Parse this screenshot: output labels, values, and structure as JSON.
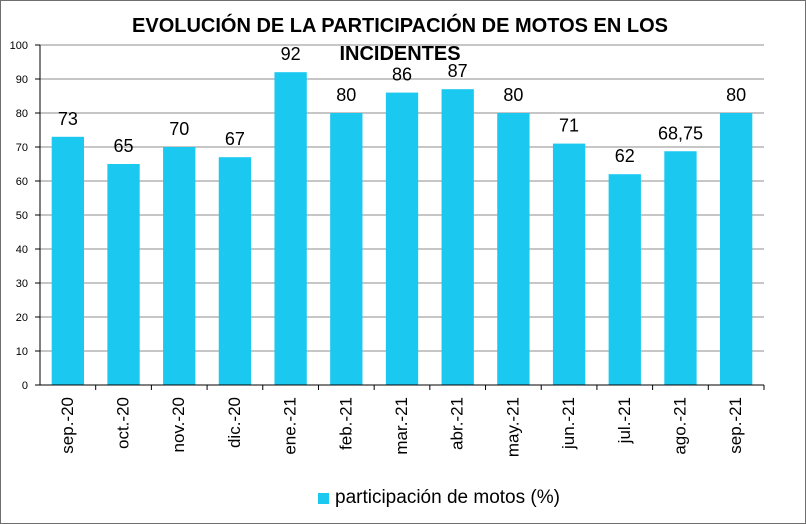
{
  "colors": {
    "bar": "#1ac8f0",
    "grid": "#8c8c8c",
    "axis": "#000000",
    "background": "#ffffff"
  },
  "chart_data": {
    "type": "bar",
    "title": "EVOLUCIÓN DE LA PARTICIPACIÓN DE MOTOS EN LOS INCIDENTES",
    "xlabel": "",
    "ylabel": "",
    "ylim": [
      0,
      100
    ],
    "yticks": [
      "0",
      "10",
      "20",
      "30",
      "40",
      "50",
      "60",
      "70",
      "80",
      "90",
      "100"
    ],
    "grid": true,
    "legend_position": "bottom",
    "categories": [
      "sep.-20",
      "oct.-20",
      "nov.-20",
      "dic.-20",
      "ene.-21",
      "feb.-21",
      "mar.-21",
      "abr.-21",
      "may.-21",
      "jun.-21",
      "jul.-21",
      "ago.-21",
      "sep.-21"
    ],
    "series": [
      {
        "name": "participación de motos (%)",
        "values": [
          73,
          65,
          70,
          67,
          92,
          80,
          86,
          87,
          80,
          71,
          62,
          68.75,
          80
        ],
        "labels": [
          "73",
          "65",
          "70",
          "67",
          "92",
          "80",
          "86",
          "87",
          "80",
          "71",
          "62",
          "68,75",
          "80"
        ]
      }
    ]
  }
}
